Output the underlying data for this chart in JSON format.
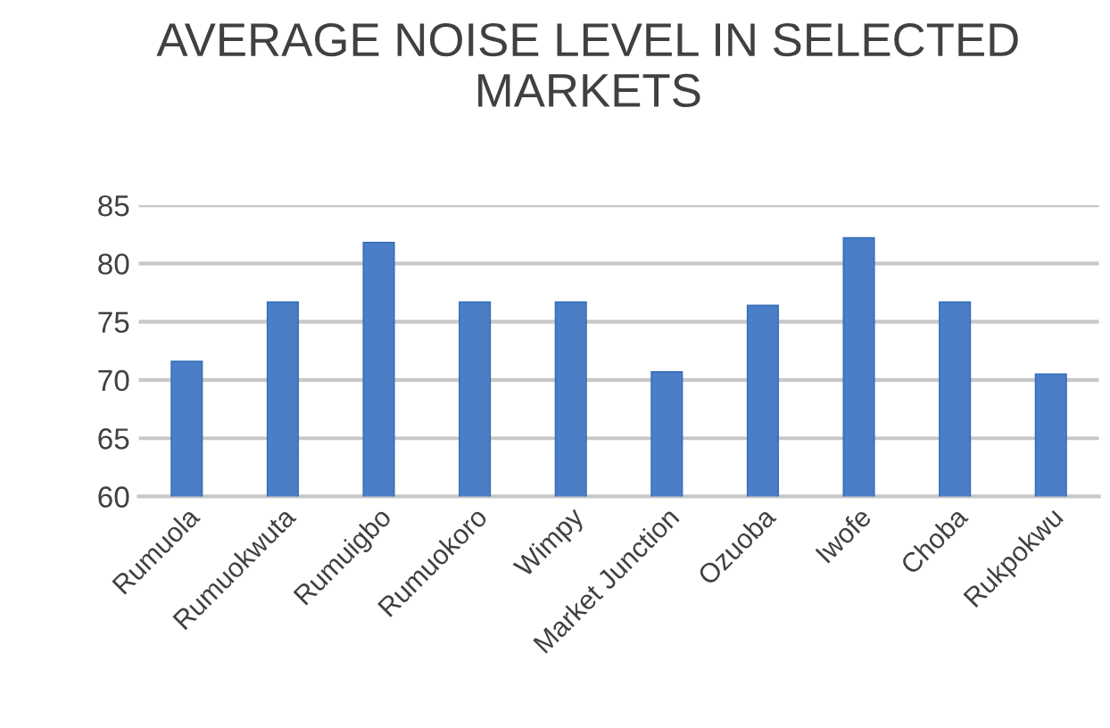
{
  "chart_data": {
    "type": "bar",
    "title": "AVERAGE NOISE LEVEL IN SELECTED MARKETS",
    "categories": [
      "Rumuola",
      "Rumuokwuta",
      "Rumuigbo",
      "Rumuokoro",
      "Wimpy",
      "Market Junction",
      "Ozuoba",
      "Iwofe",
      "Choba",
      "Rukpokwu"
    ],
    "values": [
      71.6,
      76.7,
      81.8,
      76.7,
      76.7,
      70.7,
      76.4,
      82.2,
      76.7,
      70.5
    ],
    "color": "#4a7fc8",
    "ylim": [
      60,
      85
    ],
    "yticks": [
      60,
      65,
      70,
      75,
      80,
      85
    ],
    "grid": "y"
  }
}
